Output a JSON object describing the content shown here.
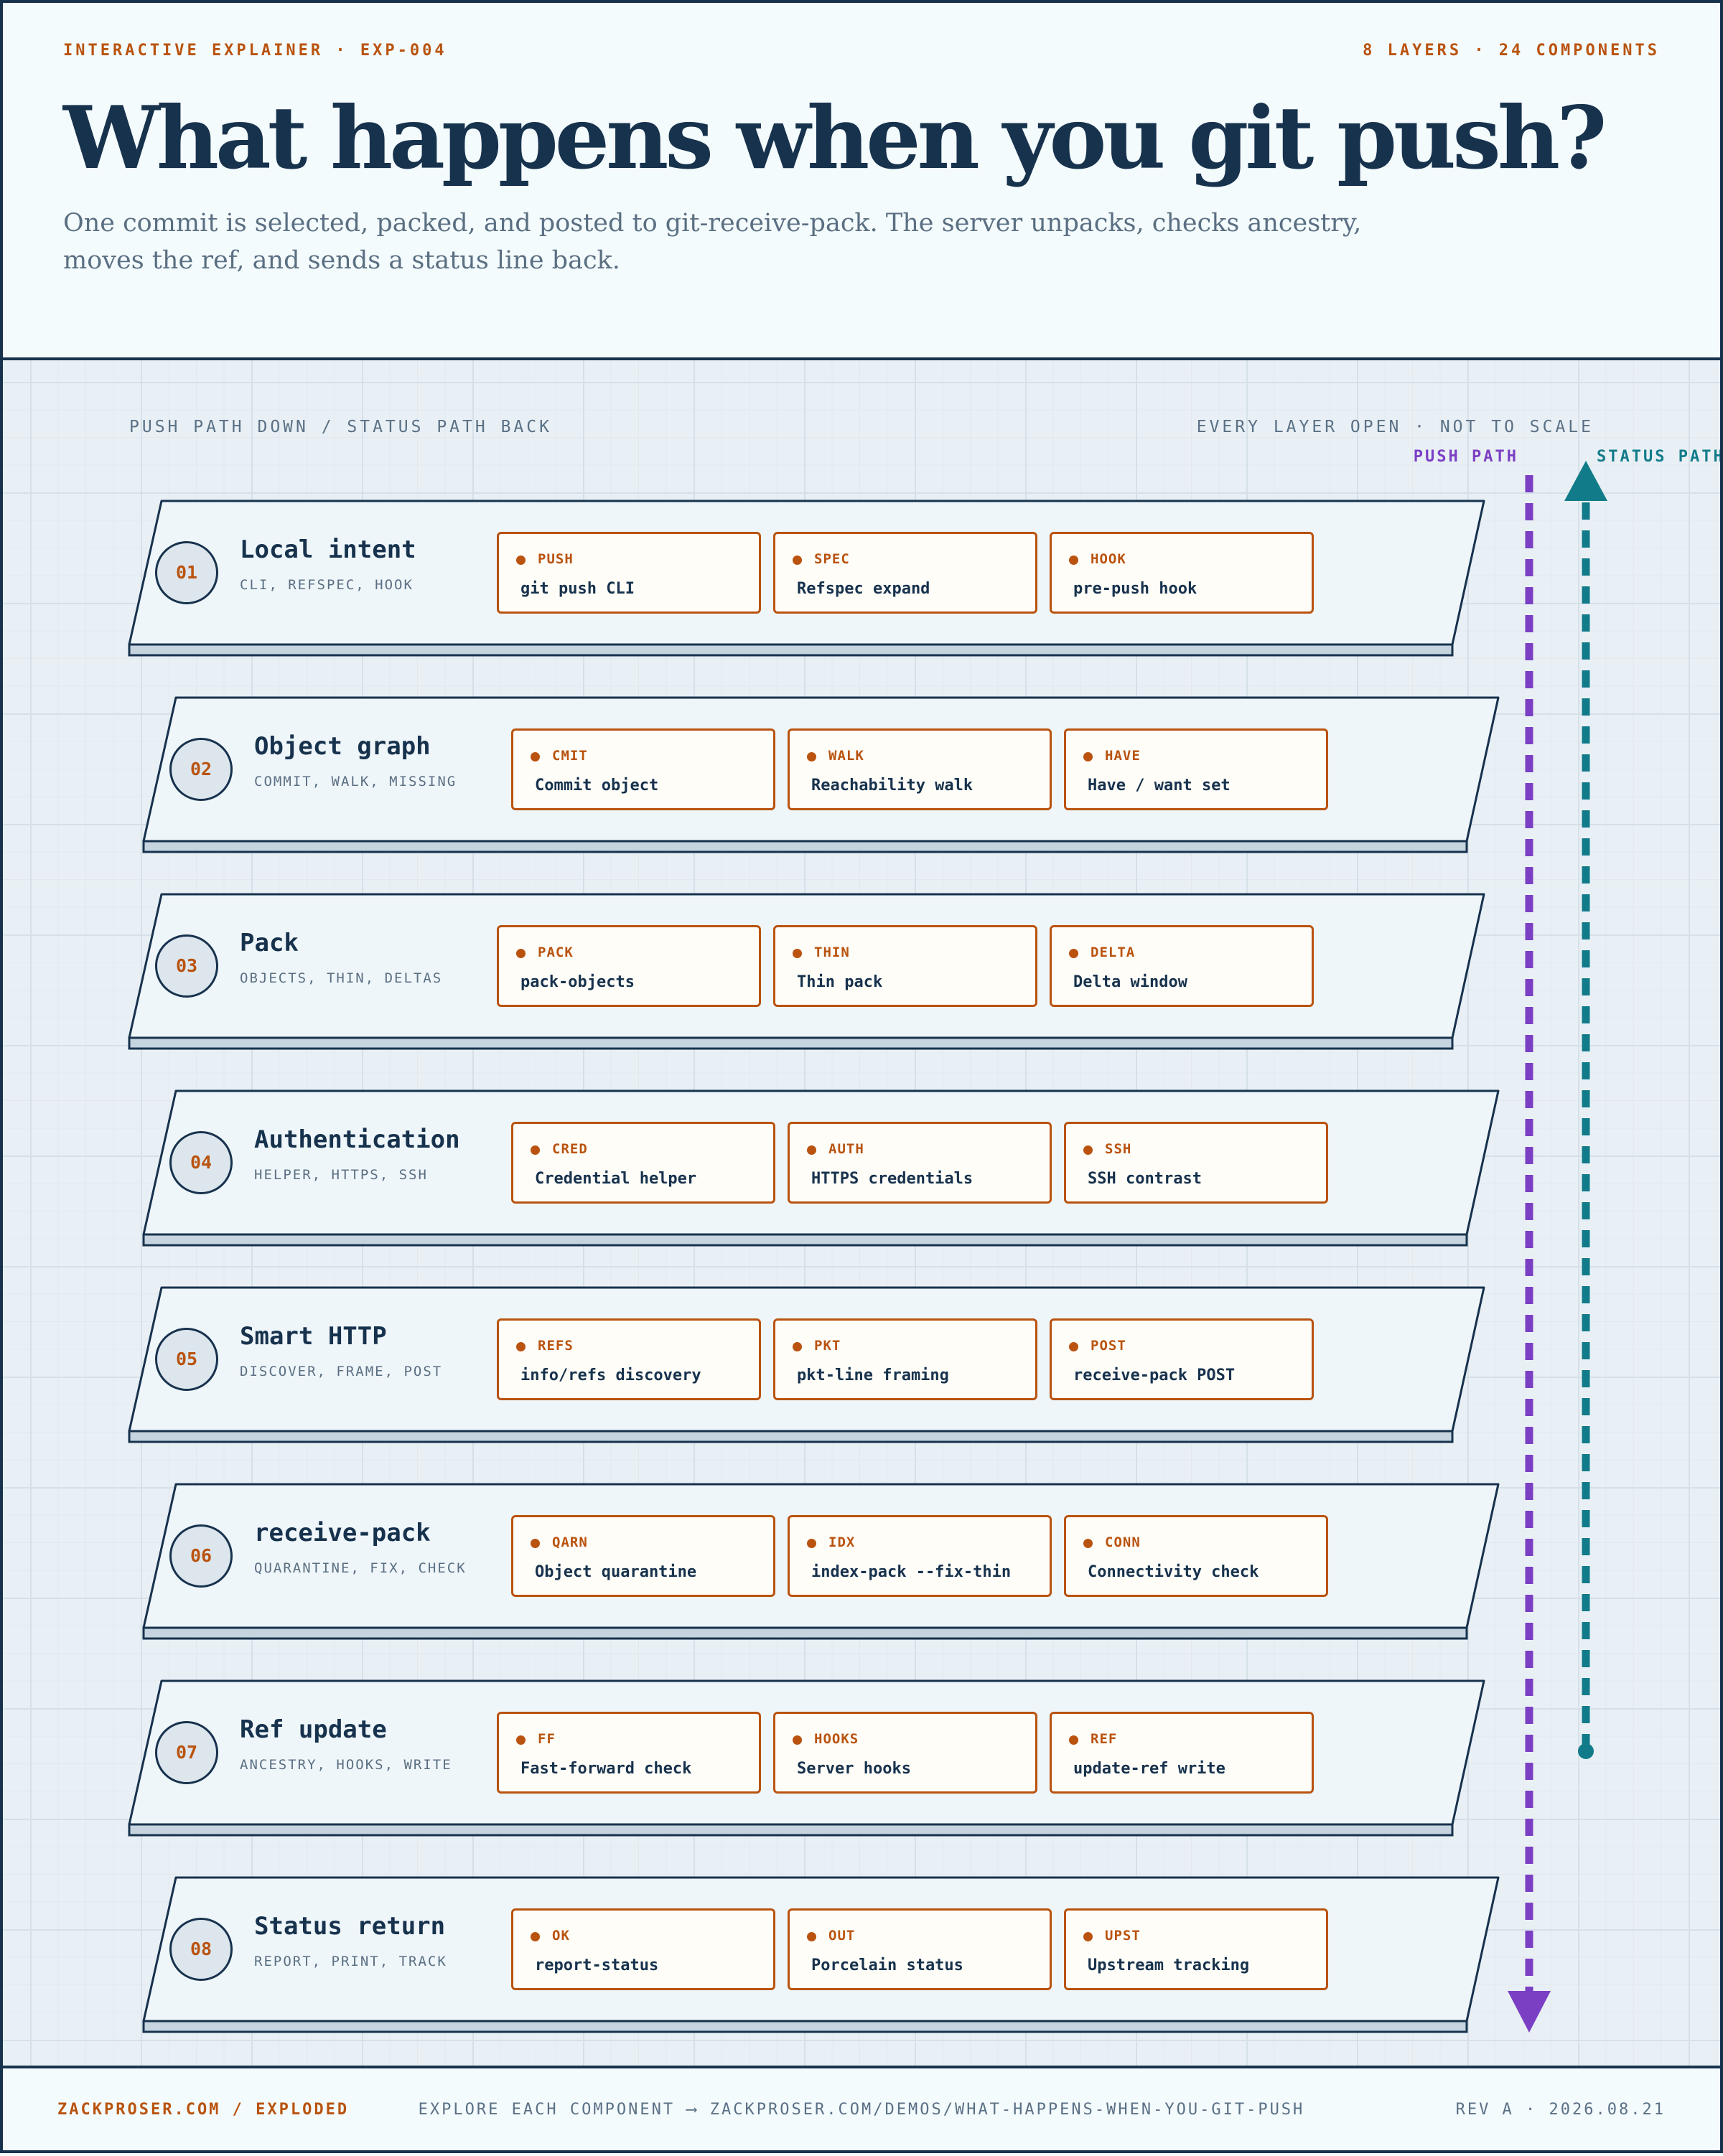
{
  "header": {
    "kicker": "INTERACTIVE EXPLAINER · EXP-004",
    "counts": "8 LAYERS · 24 COMPONENTS",
    "title": "What happens when you git push?",
    "subtitle": "One commit is selected, packed, and posted to git-receive-pack. The server unpacks, checks ancestry, moves the ref, and sends a status line back."
  },
  "diagram": {
    "caption_left": "PUSH PATH DOWN / STATUS PATH BACK",
    "caption_right": "EVERY LAYER OPEN · NOT TO SCALE",
    "push_label": "PUSH PATH",
    "status_label": "STATUS PATH",
    "colors": {
      "ink": "#17324d",
      "accent": "#b9530f",
      "push": "#7b3fc4",
      "status": "#117b8a",
      "slab": "#eff6fa",
      "card": "#fffdf8"
    },
    "layers": [
      {
        "num": "01",
        "name": "Local intent",
        "sub": "CLI, REFSPEC, HOOK",
        "components": [
          {
            "tag": "PUSH",
            "label": "git push CLI"
          },
          {
            "tag": "SPEC",
            "label": "Refspec expand"
          },
          {
            "tag": "HOOK",
            "label": "pre-push hook"
          }
        ]
      },
      {
        "num": "02",
        "name": "Object graph",
        "sub": "COMMIT, WALK, MISSING",
        "components": [
          {
            "tag": "CMIT",
            "label": "Commit object"
          },
          {
            "tag": "WALK",
            "label": "Reachability walk"
          },
          {
            "tag": "HAVE",
            "label": "Have / want set"
          }
        ]
      },
      {
        "num": "03",
        "name": "Pack",
        "sub": "OBJECTS, THIN, DELTAS",
        "components": [
          {
            "tag": "PACK",
            "label": "pack-objects"
          },
          {
            "tag": "THIN",
            "label": "Thin pack"
          },
          {
            "tag": "DELTA",
            "label": "Delta window"
          }
        ]
      },
      {
        "num": "04",
        "name": "Authentication",
        "sub": "HELPER, HTTPS, SSH",
        "components": [
          {
            "tag": "CRED",
            "label": "Credential helper"
          },
          {
            "tag": "AUTH",
            "label": "HTTPS credentials"
          },
          {
            "tag": "SSH",
            "label": "SSH contrast"
          }
        ]
      },
      {
        "num": "05",
        "name": "Smart HTTP",
        "sub": "DISCOVER, FRAME, POST",
        "components": [
          {
            "tag": "REFS",
            "label": "info/refs discovery"
          },
          {
            "tag": "PKT",
            "label": "pkt-line framing"
          },
          {
            "tag": "POST",
            "label": "receive-pack POST"
          }
        ]
      },
      {
        "num": "06",
        "name": "receive-pack",
        "sub": "QUARANTINE, FIX, CHECK",
        "components": [
          {
            "tag": "QARN",
            "label": "Object quarantine"
          },
          {
            "tag": "IDX",
            "label": "index-pack --fix-thin"
          },
          {
            "tag": "CONN",
            "label": "Connectivity check"
          }
        ]
      },
      {
        "num": "07",
        "name": "Ref update",
        "sub": "ANCESTRY, HOOKS, WRITE",
        "components": [
          {
            "tag": "FF",
            "label": "Fast-forward check"
          },
          {
            "tag": "HOOKS",
            "label": "Server hooks"
          },
          {
            "tag": "REF",
            "label": "update-ref write"
          }
        ]
      },
      {
        "num": "08",
        "name": "Status return",
        "sub": "REPORT, PRINT, TRACK",
        "components": [
          {
            "tag": "OK",
            "label": "report-status"
          },
          {
            "tag": "OUT",
            "label": "Porcelain status"
          },
          {
            "tag": "UPST",
            "label": "Upstream tracking"
          }
        ]
      }
    ]
  },
  "footer": {
    "left": "ZACKPROSER.COM / EXPLODED",
    "center": "EXPLORE EACH COMPONENT ⟶ ZACKPROSER.COM/DEMOS/WHAT-HAPPENS-WHEN-YOU-GIT-PUSH",
    "right": "REV A · 2026.08.21"
  }
}
